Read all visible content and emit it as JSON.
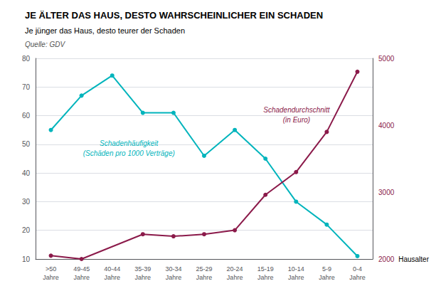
{
  "chart_data": {
    "type": "line",
    "title": "JE ÄLTER DAS HAUS, DESTO WAHRSCHEINLICHER EIN SCHADEN",
    "subtitle": "Je jünger das Haus, desto teurer der Schaden",
    "source": "Quelle: GDV",
    "x_label": "Hausalter",
    "categories": [
      ">50\nJahre",
      "49-45\nJahre",
      "40-44\nJahre",
      "35-39\nJahre",
      "30-34\nJahre",
      "25-29\nJahre",
      "20-24\nJahre",
      "15-19\nJahre",
      "10-14\nJahre",
      "5-9\nJahre",
      "0-4\nJahre"
    ],
    "series": [
      {
        "values": [
          55,
          67,
          74,
          61,
          61,
          46,
          55,
          45,
          30,
          22,
          11
        ],
        "color": "#00B4BC",
        "axis": "y",
        "marker": "circle"
      },
      {
        "values": [
          2050,
          2000,
          null,
          2370,
          2340,
          2370,
          2430,
          2960,
          3300,
          3900,
          4800
        ],
        "color": "#8B1A4A",
        "axis": "y2",
        "marker": "circle"
      }
    ],
    "ylim": [
      10,
      80
    ],
    "yticks": [
      10,
      20,
      30,
      40,
      50,
      60,
      70,
      80
    ],
    "y2lim": [
      2000,
      5000
    ],
    "y2ticks": [
      2000,
      3000,
      4000,
      5000
    ],
    "grid": true,
    "annotations": [
      {
        "text": "Schadenhäufigkeit\n(Schäden pro 1000 Verträge)",
        "color": "#00B4BC",
        "axis": "y"
      },
      {
        "text": "Schadendurchschnitt\n(in Euro)",
        "color": "#8B1A4A",
        "axis": "y2"
      }
    ]
  }
}
